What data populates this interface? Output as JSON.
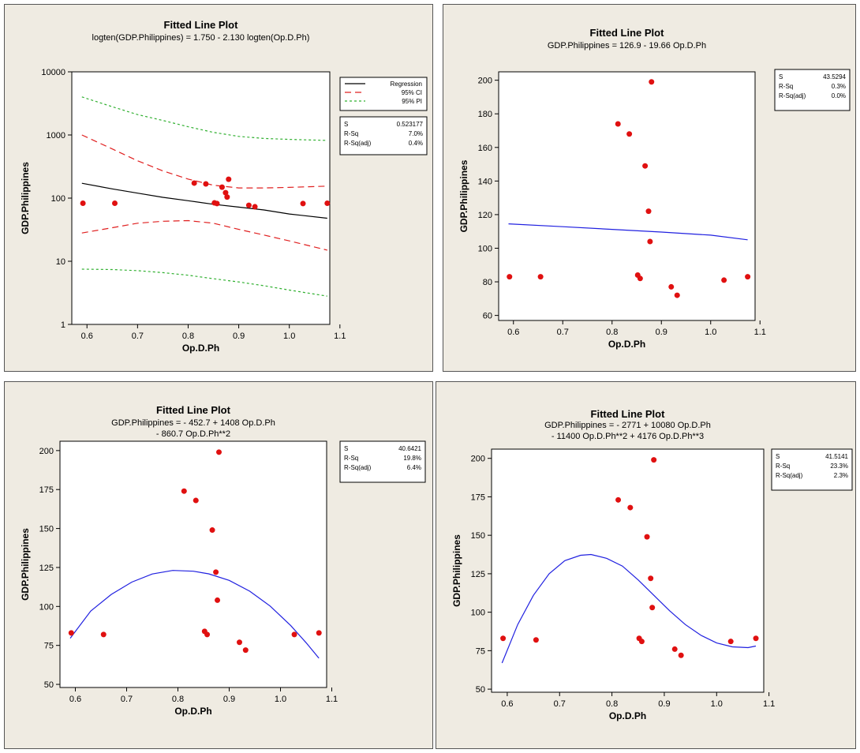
{
  "chart_data": [
    {
      "type": "scatter",
      "title": "Fitted Line Plot",
      "subtitle_lines": [
        "logten(GDP.Philippines) = 1.750 - 2.130 logten(Op.D.Ph)"
      ],
      "xlabel": "Op.D.Ph",
      "ylabel": "GDP.Philippines",
      "y_scale": "log",
      "xlim": [
        0.57,
        1.08
      ],
      "ylim": [
        1,
        10000
      ],
      "xticks": [
        "0.6",
        "0.7",
        "0.8",
        "0.9",
        "1.0",
        "1.1"
      ],
      "yticks": [
        "1",
        "10",
        "100",
        "1000",
        "10000"
      ],
      "legend": [
        "Regression",
        "95% CI",
        "95% PI"
      ],
      "stats": [
        [
          "S",
          "0.523177"
        ],
        [
          "R-Sq",
          "7.0%"
        ],
        [
          "R-Sq(adj)",
          "0.4%"
        ]
      ],
      "points": {
        "x": [
          0.592,
          0.655,
          0.812,
          0.835,
          0.852,
          0.857,
          0.867,
          0.874,
          0.877,
          0.88,
          0.92,
          0.932,
          1.027,
          1.075
        ],
        "y": [
          83,
          83,
          173,
          168,
          84,
          82,
          149,
          122,
          104,
          199,
          77,
          73,
          82,
          83
        ]
      },
      "series": [
        {
          "name": "Regression",
          "x": [
            0.59,
            0.65,
            0.7,
            0.75,
            0.8,
            0.85,
            0.9,
            0.95,
            1.0,
            1.075
          ],
          "y": [
            172,
            140,
            120,
            103,
            91,
            80,
            72,
            65,
            56,
            48
          ],
          "color": "#000000",
          "style": "solid"
        },
        {
          "name": "95% CI",
          "x": [
            0.59,
            0.65,
            0.7,
            0.75,
            0.8,
            0.85,
            0.9,
            0.95,
            1.0,
            1.075
          ],
          "y": [
            1000,
            600,
            390,
            270,
            200,
            160,
            145,
            145,
            148,
            155
          ],
          "color": "#e02020",
          "style": "dashed"
        },
        {
          "name": "95% CI",
          "x": [
            0.59,
            0.65,
            0.7,
            0.75,
            0.8,
            0.85,
            0.9,
            0.95,
            1.0,
            1.075
          ],
          "y": [
            28,
            34,
            40,
            43,
            44,
            40,
            32,
            26,
            21,
            15
          ],
          "color": "#e02020",
          "style": "dashed"
        },
        {
          "name": "95% PI",
          "x": [
            0.59,
            0.65,
            0.7,
            0.75,
            0.8,
            0.85,
            0.9,
            0.95,
            1.0,
            1.075
          ],
          "y": [
            4000,
            2800,
            2100,
            1700,
            1350,
            1100,
            950,
            880,
            850,
            820
          ],
          "color": "#30b030",
          "style": "dotted"
        },
        {
          "name": "95% PI",
          "x": [
            0.59,
            0.65,
            0.7,
            0.75,
            0.8,
            0.85,
            0.9,
            0.95,
            1.0,
            1.075
          ],
          "y": [
            7.5,
            7.4,
            7.1,
            6.6,
            6,
            5.3,
            4.7,
            4.1,
            3.5,
            2.8
          ],
          "color": "#30b030",
          "style": "dotted"
        }
      ]
    },
    {
      "type": "scatter",
      "title": "Fitted Line Plot",
      "subtitle_lines": [
        "GDP.Philippines = 126.9 - 19.66 Op.D.Ph"
      ],
      "xlabel": "Op.D.Ph",
      "ylabel": "GDP.Philippines",
      "y_scale": "linear",
      "xlim": [
        0.57,
        1.09
      ],
      "ylim": [
        57,
        205
      ],
      "xticks": [
        "0.6",
        "0.7",
        "0.8",
        "0.9",
        "1.0",
        "1.1"
      ],
      "yticks": [
        "60",
        "80",
        "100",
        "120",
        "140",
        "160",
        "180",
        "200"
      ],
      "stats": [
        [
          "S",
          "43.5294"
        ],
        [
          "R-Sq",
          "0.3%"
        ],
        [
          "R-Sq(adj)",
          "0.0%"
        ]
      ],
      "points": {
        "x": [
          0.592,
          0.655,
          0.812,
          0.835,
          0.852,
          0.857,
          0.867,
          0.874,
          0.877,
          0.88,
          0.92,
          0.932,
          1.027,
          1.075
        ],
        "y": [
          83,
          83,
          174,
          168,
          84,
          82,
          149,
          122,
          104,
          199,
          77,
          72,
          81,
          83
        ]
      },
      "series": [
        {
          "name": "",
          "x": [
            0.59,
            0.7,
            0.8,
            0.9,
            1.0,
            1.075
          ],
          "y": [
            114.5,
            112.8,
            111.2,
            109.6,
            107.8,
            105
          ],
          "color": "#2020e0",
          "style": "solid"
        }
      ]
    },
    {
      "type": "scatter",
      "title": "Fitted Line Plot",
      "subtitle_lines": [
        "GDP.Philippines = - 452.7 + 1408 Op.D.Ph",
        "- 860.7 Op.D.Ph**2"
      ],
      "xlabel": "Op.D.Ph",
      "ylabel": "GDP.Philippines",
      "y_scale": "linear",
      "xlim": [
        0.57,
        1.09
      ],
      "ylim": [
        48,
        206
      ],
      "xticks": [
        "0.6",
        "0.7",
        "0.8",
        "0.9",
        "1.0",
        "1.1"
      ],
      "yticks": [
        "50",
        "75",
        "100",
        "125",
        "150",
        "175",
        "200"
      ],
      "stats": [
        [
          "S",
          "40.6421"
        ],
        [
          "R-Sq",
          "19.8%"
        ],
        [
          "R-Sq(adj)",
          "6.4%"
        ]
      ],
      "points": {
        "x": [
          0.592,
          0.655,
          0.812,
          0.835,
          0.852,
          0.857,
          0.867,
          0.874,
          0.877,
          0.88,
          0.92,
          0.932,
          1.027,
          1.075
        ],
        "y": [
          83,
          82,
          174,
          168,
          84,
          82,
          149,
          122,
          104,
          199,
          77,
          72,
          82,
          83
        ]
      },
      "series": [
        {
          "name": "",
          "x": [
            0.59,
            0.63,
            0.67,
            0.71,
            0.75,
            0.79,
            0.83,
            0.86,
            0.9,
            0.94,
            0.98,
            1.02,
            1.05,
            1.075
          ],
          "y": [
            79.6,
            97,
            107.7,
            115.6,
            120.8,
            123.1,
            122.6,
            120.9,
            116.7,
            109.8,
            100.2,
            87.7,
            76.7,
            66.8
          ],
          "color": "#2020e0",
          "style": "solid"
        }
      ]
    },
    {
      "type": "scatter",
      "title": "Fitted Line Plot",
      "subtitle_lines": [
        "GDP.Philippines = - 2771 + 10080 Op.D.Ph",
        "- 11400 Op.D.Ph**2 + 4176 Op.D.Ph**3"
      ],
      "xlabel": "Op.D.Ph",
      "ylabel": "GDP.Philippines",
      "y_scale": "linear",
      "xlim": [
        0.57,
        1.09
      ],
      "ylim": [
        48,
        206
      ],
      "xticks": [
        "0.6",
        "0.7",
        "0.8",
        "0.9",
        "1.0",
        "1.1"
      ],
      "yticks": [
        "50",
        "75",
        "100",
        "125",
        "150",
        "175",
        "200"
      ],
      "stats": [
        [
          "S",
          "41.5141"
        ],
        [
          "R-Sq",
          "23.3%"
        ],
        [
          "R-Sq(adj)",
          "2.3%"
        ]
      ],
      "points": {
        "x": [
          0.592,
          0.655,
          0.812,
          0.835,
          0.852,
          0.857,
          0.867,
          0.874,
          0.877,
          0.88,
          0.92,
          0.932,
          1.027,
          1.075
        ],
        "y": [
          83,
          82,
          173,
          168,
          83,
          81,
          149,
          122,
          103,
          199,
          76,
          72,
          81,
          83
        ]
      },
      "series": [
        {
          "name": "",
          "x": [
            0.59,
            0.62,
            0.65,
            0.68,
            0.71,
            0.74,
            0.76,
            0.79,
            0.82,
            0.85,
            0.88,
            0.91,
            0.94,
            0.97,
            1.0,
            1.03,
            1.06,
            1.075
          ],
          "y": [
            67,
            92,
            111,
            125,
            133.5,
            137,
            137.5,
            135,
            130,
            121,
            111,
            101,
            92,
            85,
            80,
            77.5,
            77,
            78
          ],
          "color": "#2020e0",
          "style": "solid"
        }
      ]
    }
  ]
}
